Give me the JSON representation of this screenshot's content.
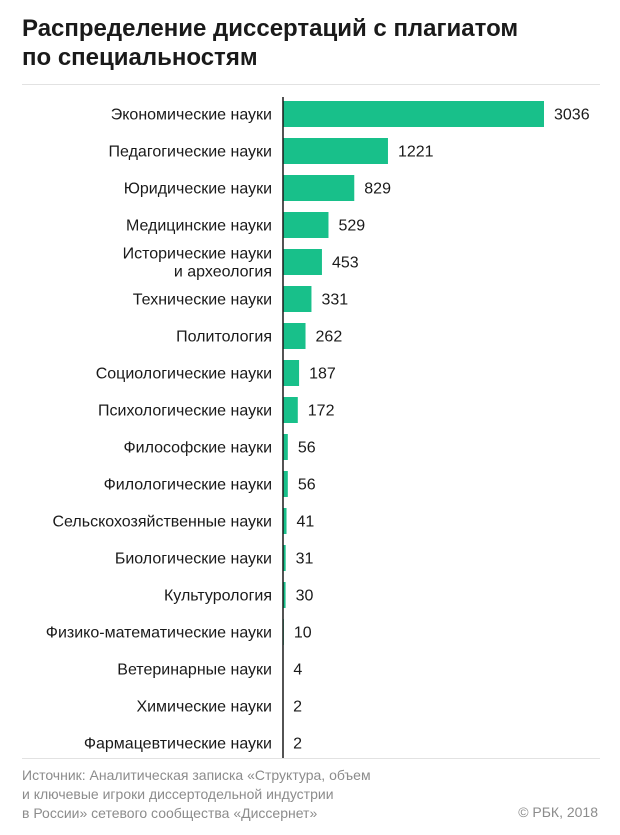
{
  "title_lines": [
    "Распределение диссертаций с плагиатом",
    "по специальностям"
  ],
  "footer_lines": [
    "Источник: Аналитическая записка «Структура, объем",
    "и ключевые игроки диссертодельной индустрии",
    "в России» сетевого сообщества «Диссернет»"
  ],
  "credit": "© РБК, 2018",
  "colors": {
    "bar": "#18c08a",
    "axis": "#1a1a1a"
  },
  "chart_data": {
    "type": "bar",
    "orientation": "horizontal",
    "categories": [
      [
        "Экономические науки"
      ],
      [
        "Педагогические науки"
      ],
      [
        "Юридические науки"
      ],
      [
        "Медицинские науки"
      ],
      [
        "Исторические науки",
        "и археология"
      ],
      [
        "Технические науки"
      ],
      [
        "Политология"
      ],
      [
        "Социологические науки"
      ],
      [
        "Психологические науки"
      ],
      [
        "Философские науки"
      ],
      [
        "Филологические науки"
      ],
      [
        "Сельскохозяйственные науки"
      ],
      [
        "Биологические науки"
      ],
      [
        "Культурология"
      ],
      [
        "Физико-математические науки"
      ],
      [
        "Ветеринарные науки"
      ],
      [
        "Химические науки"
      ],
      [
        "Фармацевтические науки"
      ]
    ],
    "values": [
      3036,
      1221,
      829,
      529,
      453,
      331,
      262,
      187,
      172,
      56,
      56,
      41,
      31,
      30,
      10,
      4,
      2,
      2
    ],
    "data_labels": [
      "3036",
      "1221",
      "829",
      "529",
      "453",
      "331",
      "262",
      "187",
      "172",
      "56",
      "56",
      "41",
      "31",
      "30",
      "10",
      "4",
      "2",
      "2"
    ],
    "xlim": [
      0,
      3036
    ],
    "grid": false,
    "legend": "none",
    "title": "Распределение диссертаций с плагиатом по специальностям",
    "xlabel": "",
    "ylabel": ""
  }
}
